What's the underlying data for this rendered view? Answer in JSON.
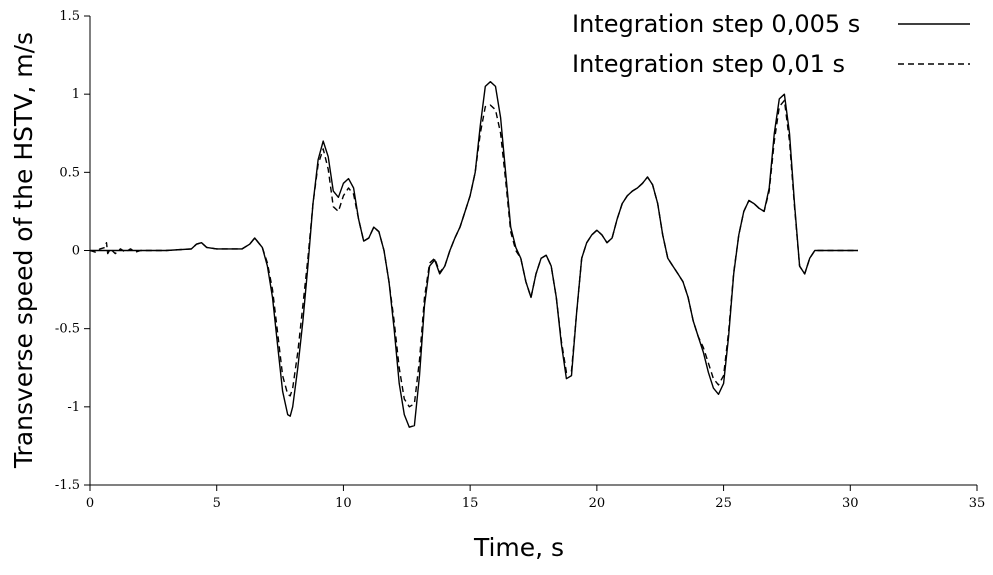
{
  "chart_data": {
    "type": "line",
    "title": "",
    "xlabel": "Time, s",
    "ylabel": "Transverse speed of the HSTV, m/s",
    "xlim": [
      0,
      35
    ],
    "ylim": [
      -1.5,
      1.5
    ],
    "xticks": [
      0,
      5,
      10,
      15,
      20,
      25,
      30,
      35
    ],
    "yticks": [
      -1.5,
      -1,
      -0.5,
      0,
      0.5,
      1,
      1.5
    ],
    "xtick_labels": [
      "0",
      "5",
      "10",
      "15",
      "20",
      "25",
      "30",
      "35"
    ],
    "ytick_labels": [
      "-1.5",
      "-1",
      "-0.5",
      "0",
      "0.5",
      "1",
      "1.5"
    ],
    "grid": false,
    "legend_position": "top-right",
    "series": [
      {
        "name": "Integration step  0,005 s",
        "style": "solid",
        "color": "#000000",
        "x": [
          0,
          0.5,
          1,
          1.5,
          2,
          3,
          4,
          4.2,
          4.4,
          4.6,
          5,
          5.5,
          6,
          6.3,
          6.5,
          6.8,
          7.0,
          7.2,
          7.4,
          7.6,
          7.8,
          7.9,
          8.0,
          8.2,
          8.4,
          8.6,
          8.8,
          9.0,
          9.2,
          9.4,
          9.6,
          9.8,
          10.0,
          10.2,
          10.4,
          10.6,
          10.8,
          11.0,
          11.2,
          11.4,
          11.6,
          11.8,
          12.0,
          12.2,
          12.4,
          12.6,
          12.8,
          13.0,
          13.2,
          13.4,
          13.6,
          13.8,
          14.0,
          14.2,
          14.4,
          14.6,
          14.8,
          15.0,
          15.2,
          15.4,
          15.6,
          15.8,
          16.0,
          16.2,
          16.4,
          16.6,
          16.8,
          17.0,
          17.2,
          17.4,
          17.6,
          17.8,
          18.0,
          18.2,
          18.4,
          18.6,
          18.8,
          19.0,
          19.2,
          19.4,
          19.6,
          19.8,
          20.0,
          20.2,
          20.4,
          20.6,
          20.8,
          21.0,
          21.2,
          21.4,
          21.6,
          21.8,
          22.0,
          22.2,
          22.4,
          22.6,
          22.8,
          23.0,
          23.2,
          23.4,
          23.6,
          23.8,
          24.0,
          24.2,
          24.4,
          24.6,
          24.8,
          25.0,
          25.2,
          25.4,
          25.6,
          25.8,
          26.0,
          26.2,
          26.4,
          26.6,
          26.8,
          27.0,
          27.2,
          27.4,
          27.6,
          27.8,
          28.0,
          28.2,
          28.4,
          28.6,
          28.8,
          29.0,
          29.5,
          30.0,
          30.3
        ],
        "y": [
          0,
          0,
          0,
          0,
          0,
          0,
          0.01,
          0.04,
          0.05,
          0.02,
          0.01,
          0.01,
          0.01,
          0.04,
          0.08,
          0.02,
          -0.1,
          -0.3,
          -0.6,
          -0.9,
          -1.05,
          -1.06,
          -1.0,
          -0.75,
          -0.45,
          -0.1,
          0.3,
          0.58,
          0.7,
          0.6,
          0.38,
          0.34,
          0.43,
          0.46,
          0.4,
          0.2,
          0.06,
          0.08,
          0.15,
          0.12,
          0.0,
          -0.2,
          -0.5,
          -0.85,
          -1.05,
          -1.13,
          -1.12,
          -0.8,
          -0.35,
          -0.1,
          -0.06,
          -0.15,
          -0.1,
          0.0,
          0.08,
          0.15,
          0.25,
          0.35,
          0.5,
          0.8,
          1.05,
          1.08,
          1.05,
          0.85,
          0.5,
          0.15,
          0.02,
          -0.05,
          -0.2,
          -0.3,
          -0.15,
          -0.05,
          -0.03,
          -0.1,
          -0.3,
          -0.6,
          -0.82,
          -0.8,
          -0.4,
          -0.05,
          0.05,
          0.1,
          0.13,
          0.1,
          0.05,
          0.08,
          0.2,
          0.3,
          0.35,
          0.38,
          0.4,
          0.43,
          0.47,
          0.42,
          0.3,
          0.1,
          -0.05,
          -0.1,
          -0.15,
          -0.2,
          -0.3,
          -0.45,
          -0.55,
          -0.65,
          -0.78,
          -0.88,
          -0.92,
          -0.85,
          -0.55,
          -0.15,
          0.1,
          0.25,
          0.32,
          0.3,
          0.27,
          0.25,
          0.4,
          0.75,
          0.97,
          1.0,
          0.75,
          0.3,
          -0.1,
          -0.15,
          -0.05,
          0.0,
          0.0,
          0.0,
          0.0,
          0.0,
          0.0
        ]
      },
      {
        "name": "Integration step  0,01 s",
        "style": "dashed",
        "color": "#000000",
        "x": [
          0,
          0.2,
          0.4,
          0.6,
          0.65,
          0.7,
          0.8,
          1.0,
          1.2,
          1.4,
          1.6,
          1.8,
          2.0,
          3,
          4,
          4.2,
          4.4,
          4.6,
          5,
          5.5,
          6,
          6.3,
          6.5,
          6.8,
          7.0,
          7.2,
          7.4,
          7.6,
          7.8,
          7.9,
          8.0,
          8.2,
          8.4,
          8.6,
          8.8,
          9.0,
          9.2,
          9.4,
          9.6,
          9.8,
          10.0,
          10.2,
          10.4,
          10.6,
          10.8,
          11.0,
          11.2,
          11.4,
          11.6,
          11.8,
          12.0,
          12.2,
          12.4,
          12.6,
          12.8,
          13.0,
          13.2,
          13.4,
          13.6,
          13.8,
          14.0,
          14.2,
          14.4,
          14.6,
          14.8,
          15.0,
          15.2,
          15.4,
          15.6,
          15.8,
          16.0,
          16.2,
          16.4,
          16.6,
          16.8,
          17.0,
          17.2,
          17.4,
          17.6,
          17.8,
          18.0,
          18.2,
          18.4,
          18.6,
          18.8,
          19.0,
          19.2,
          19.4,
          19.6,
          19.8,
          20.0,
          20.2,
          20.4,
          20.6,
          20.8,
          21.0,
          21.2,
          21.4,
          21.6,
          21.8,
          22.0,
          22.2,
          22.4,
          22.6,
          22.8,
          23.0,
          23.2,
          23.4,
          23.6,
          23.8,
          24.0,
          24.2,
          24.4,
          24.6,
          24.8,
          25.0,
          25.2,
          25.4,
          25.6,
          25.8,
          26.0,
          26.2,
          26.4,
          26.6,
          26.8,
          27.0,
          27.2,
          27.4,
          27.6,
          27.8,
          28.0,
          28.2,
          28.4,
          28.6,
          28.8,
          29.0,
          29.5,
          30.0,
          30.3
        ],
        "y": [
          0,
          -0.01,
          0.01,
          0.02,
          0.05,
          -0.02,
          0.01,
          -0.02,
          0.01,
          -0.01,
          0.01,
          -0.01,
          0,
          0,
          0.01,
          0.04,
          0.05,
          0.02,
          0.01,
          0.01,
          0.01,
          0.04,
          0.08,
          0.02,
          -0.08,
          -0.25,
          -0.52,
          -0.8,
          -0.92,
          -0.93,
          -0.88,
          -0.65,
          -0.35,
          -0.05,
          0.3,
          0.55,
          0.65,
          0.52,
          0.28,
          0.25,
          0.35,
          0.4,
          0.36,
          0.2,
          0.06,
          0.08,
          0.15,
          0.12,
          0.0,
          -0.2,
          -0.45,
          -0.75,
          -0.95,
          -1.0,
          -0.98,
          -0.7,
          -0.3,
          -0.08,
          -0.05,
          -0.14,
          -0.1,
          0.0,
          0.08,
          0.15,
          0.25,
          0.35,
          0.5,
          0.75,
          0.92,
          0.93,
          0.9,
          0.75,
          0.45,
          0.12,
          0.0,
          -0.05,
          -0.2,
          -0.3,
          -0.15,
          -0.05,
          -0.03,
          -0.1,
          -0.3,
          -0.58,
          -0.78,
          -0.77,
          -0.4,
          -0.05,
          0.05,
          0.1,
          0.13,
          0.1,
          0.05,
          0.08,
          0.2,
          0.3,
          0.35,
          0.38,
          0.4,
          0.43,
          0.47,
          0.42,
          0.3,
          0.1,
          -0.05,
          -0.1,
          -0.15,
          -0.2,
          -0.3,
          -0.45,
          -0.55,
          -0.62,
          -0.72,
          -0.82,
          -0.86,
          -0.8,
          -0.52,
          -0.14,
          0.1,
          0.25,
          0.32,
          0.3,
          0.27,
          0.25,
          0.38,
          0.7,
          0.92,
          0.96,
          0.7,
          0.28,
          -0.1,
          -0.15,
          -0.05,
          0.0,
          0.0,
          0.0,
          0.0,
          0.0,
          0.0
        ]
      }
    ]
  }
}
